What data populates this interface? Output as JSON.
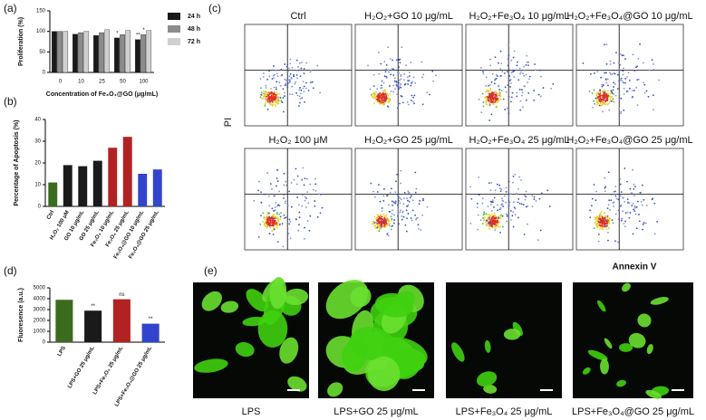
{
  "panel_labels": [
    "(a)",
    "(b)",
    "(c)",
    "(d)",
    "(e)"
  ],
  "chart_data": [
    {
      "type": "bar",
      "y_label": "Proliferation (%)",
      "x_label": "Concentration of Fe₃O₄@GO (μg/mL)",
      "categories": [
        "0",
        "10",
        "25",
        "50",
        "100"
      ],
      "series": [
        {
          "name": "24 h",
          "color": "#1a1a1a",
          "values": [
            100,
            93,
            90,
            84,
            80
          ]
        },
        {
          "name": "48 h",
          "color": "#8c8c8c",
          "values": [
            100,
            97,
            97,
            92,
            92
          ]
        },
        {
          "name": "72 h",
          "color": "#d0d0d0",
          "values": [
            100,
            100,
            104,
            102,
            102
          ]
        }
      ],
      "annotations": [
        {
          "text": "*",
          "series": 0,
          "index": 3
        },
        {
          "text": "**",
          "series": 0,
          "index": 4
        },
        {
          "text": "*",
          "series": 1,
          "index": 4
        }
      ],
      "ylim": [
        0,
        150
      ],
      "yticks": [
        0,
        50,
        100,
        150
      ]
    },
    {
      "type": "bar",
      "y_label": "Percentage of Apoptosis (%)",
      "categories": [
        "Ctrl",
        "H₂O₂ 100 μM",
        "GO 10 μg/mL",
        "GO 25 μg/mL",
        "Fe₃O₄ 10 μg/mL",
        "Fe₃O₄ 25 μg/mL",
        "Fe₃O₄@GO 10 μg/mL",
        "Fe₃O₄@GO 25 μg/mL"
      ],
      "values": [
        11,
        19,
        18.5,
        21,
        27,
        32,
        15,
        17
      ],
      "colors": [
        "#3a6b1f",
        "#1a1a1a",
        "#1a1a1a",
        "#1a1a1a",
        "#b22222",
        "#b22222",
        "#3344cc",
        "#3344cc"
      ],
      "ylim": [
        0,
        40
      ],
      "yticks": [
        0,
        10,
        20,
        30,
        40
      ]
    },
    {
      "type": "bar",
      "y_label": "Fluoresence (a.u.)",
      "categories": [
        "LPS",
        "LPS+GO 25 μg/mL",
        "LPS+Fe₃O₄ 25 μg/mL",
        "LPS+Fe₃O₄@GO 25 μg/mL"
      ],
      "values": [
        3900,
        2900,
        3950,
        1700
      ],
      "colors": [
        "#3a6b1f",
        "#1a1a1a",
        "#b22222",
        "#3344cc"
      ],
      "annotations": [
        {
          "text": "**",
          "index": 1
        },
        {
          "text": "ns",
          "index": 2
        },
        {
          "text": "**",
          "index": 3
        }
      ],
      "ylim": [
        0,
        5000
      ],
      "yticks": [
        0,
        1000,
        2000,
        3000,
        4000,
        5000
      ]
    }
  ],
  "flow": {
    "titles": [
      "Ctrl",
      "H₂O₂+GO 10 μg/mL",
      "H₂O₂+Fe₃O₄ 10 μg/mL",
      "H₂O₂+Fe₃O₄@GO 10 μg/mL",
      "H₂O₂ 100 μM",
      "H₂O₂+GO 25 μg/mL",
      "H₂O₂+Fe₃O₄ 25 μg/mL",
      "H₂O₂+Fe₃O₄@GO 25 μg/mL"
    ],
    "y_label": "PI",
    "x_label": "Annexin V"
  },
  "images": {
    "captions": [
      "LPS",
      "LPS+GO 25 μg/mL",
      "LPS+Fe₃O₄ 25 μg/mL",
      "LPS+Fe₃O₄@GO 25 μg/mL"
    ]
  }
}
